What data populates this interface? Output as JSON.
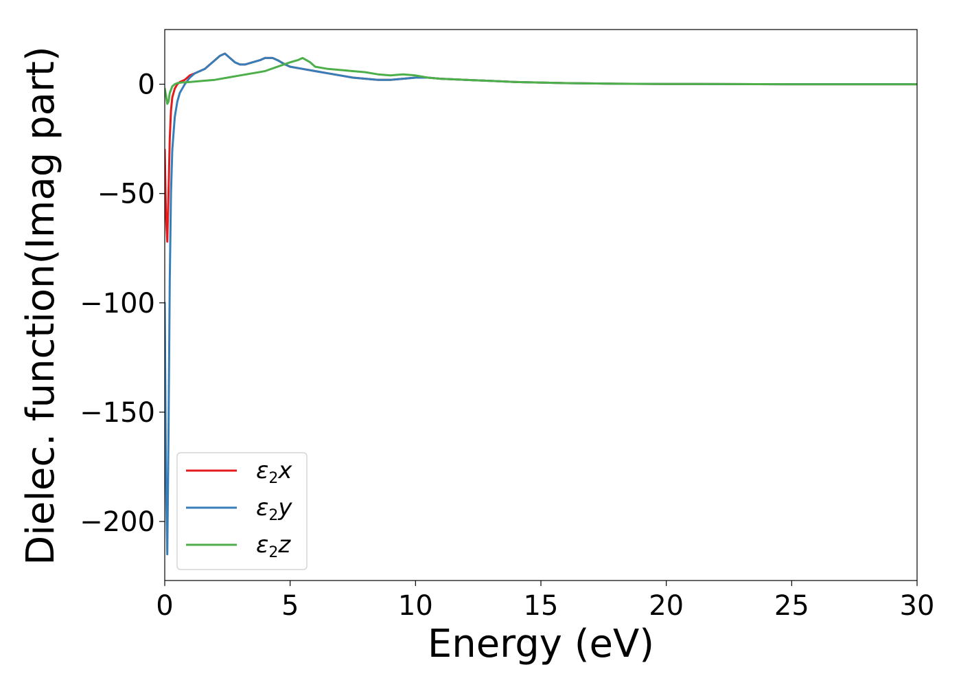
{
  "chart_data": {
    "type": "line",
    "title": "",
    "xlabel": "Energy (eV)",
    "ylabel": "Dielec. function(Imag part)",
    "xlim": [
      0,
      30
    ],
    "ylim": [
      -227,
      25
    ],
    "xticks": [
      0,
      5,
      10,
      15,
      20,
      25,
      30
    ],
    "xtick_labels": [
      "0",
      "5",
      "10",
      "15",
      "20",
      "25",
      "30"
    ],
    "yticks": [
      0,
      -50,
      -100,
      -150,
      -200
    ],
    "ytick_labels": [
      "0",
      "−50",
      "−100",
      "−150",
      "−200"
    ],
    "grid": false,
    "legend_position": "lower-left",
    "series": [
      {
        "name": "ε₂x",
        "legend_main": "ε",
        "legend_sub": "2",
        "legend_suffix": "x",
        "color": "#e41a1c",
        "x": [
          0.0,
          0.05,
          0.1,
          0.15,
          0.2,
          0.25,
          0.3,
          0.4,
          0.5,
          0.6,
          0.8,
          1.0,
          1.2,
          1.4,
          1.6,
          1.8,
          2.0,
          2.2,
          2.4,
          2.6,
          2.8,
          3.0,
          3.2,
          3.5,
          3.8,
          4.0,
          4.3,
          4.5,
          4.8,
          5.0,
          5.5,
          6.0,
          6.5,
          7.0,
          7.5,
          8.0,
          8.5,
          9.0,
          9.5,
          10.0,
          10.5,
          11.0,
          12.0,
          13.0,
          14.0,
          16.0,
          18.0,
          20.0,
          25.0,
          30.0
        ],
        "y": [
          -30,
          -60,
          -72,
          -50,
          -25,
          -12,
          -6,
          -2,
          0,
          1,
          2,
          4,
          5,
          6,
          7,
          9,
          11,
          13,
          14,
          12,
          10,
          9,
          9,
          10,
          11,
          12,
          12,
          11,
          9,
          8,
          7,
          6,
          5,
          4,
          3,
          2.5,
          2,
          2,
          2.5,
          3,
          3,
          2.5,
          2,
          1.5,
          1,
          0.5,
          0.2,
          0.1,
          0,
          0
        ]
      },
      {
        "name": "ε₂y",
        "legend_main": "ε",
        "legend_sub": "2",
        "legend_suffix": "y",
        "color": "#377eb8",
        "x": [
          0.0,
          0.05,
          0.1,
          0.15,
          0.2,
          0.25,
          0.3,
          0.4,
          0.5,
          0.6,
          0.8,
          1.0,
          1.2,
          1.4,
          1.6,
          1.8,
          2.0,
          2.2,
          2.4,
          2.6,
          2.8,
          3.0,
          3.2,
          3.5,
          3.8,
          4.0,
          4.3,
          4.5,
          4.8,
          5.0,
          5.5,
          6.0,
          6.5,
          7.0,
          7.5,
          8.0,
          8.5,
          9.0,
          9.5,
          10.0,
          10.5,
          11.0,
          12.0,
          13.0,
          14.0,
          16.0,
          18.0,
          20.0,
          25.0,
          30.0
        ],
        "y": [
          -100,
          -180,
          -215,
          -160,
          -90,
          -50,
          -30,
          -15,
          -8,
          -4,
          0,
          3,
          5,
          6,
          7,
          9,
          11,
          13,
          14,
          12,
          10,
          9,
          9,
          10,
          11,
          12,
          12,
          11,
          9,
          8,
          7,
          6,
          5,
          4,
          3,
          2.5,
          2,
          2,
          2.5,
          3,
          3,
          2.5,
          2,
          1.5,
          1,
          0.5,
          0.2,
          0.1,
          0,
          0
        ]
      },
      {
        "name": "ε₂z",
        "legend_main": "ε",
        "legend_sub": "2",
        "legend_suffix": "z",
        "color": "#4daf4a",
        "x": [
          0.0,
          0.05,
          0.1,
          0.15,
          0.2,
          0.3,
          0.4,
          0.5,
          0.7,
          1.0,
          1.5,
          2.0,
          2.5,
          3.0,
          3.5,
          4.0,
          4.5,
          5.0,
          5.3,
          5.5,
          5.8,
          6.0,
          6.5,
          7.0,
          7.5,
          8.0,
          8.5,
          9.0,
          9.5,
          10.0,
          10.5,
          11.0,
          12.0,
          13.0,
          14.0,
          16.0,
          18.0,
          20.0,
          25.0,
          30.0
        ],
        "y": [
          -2,
          -5,
          -9,
          -8,
          -4,
          -1,
          0,
          0.5,
          0.8,
          1,
          1.5,
          2,
          3,
          4,
          5,
          6,
          8,
          10,
          11,
          12,
          10,
          8,
          7,
          6.5,
          6,
          5.5,
          4.5,
          4,
          4.5,
          4,
          3,
          2.5,
          2,
          1.5,
          1,
          0.5,
          0.2,
          0.1,
          0,
          0
        ]
      }
    ]
  }
}
